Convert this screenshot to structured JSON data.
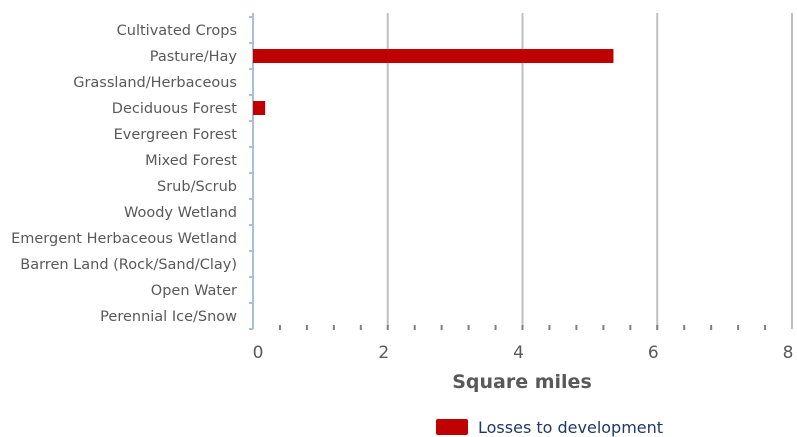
{
  "chart_data": {
    "type": "bar",
    "orientation": "horizontal",
    "categories": [
      "Cultivated Crops",
      "Pasture/Hay",
      "Grassland/Herbaceous",
      "Deciduous Forest",
      "Evergreen Forest",
      "Mixed Forest",
      "Srub/Scrub",
      "Woody Wetland",
      "Emergent Herbaceous Wetland",
      "Barren Land (Rock/Sand/Clay)",
      "Open Water",
      "Perennial Ice/Snow"
    ],
    "series": [
      {
        "name": "Losses to development",
        "color": "#c00000",
        "values": [
          0,
          5.35,
          0,
          0.18,
          0,
          0,
          0,
          0,
          0,
          0,
          0,
          0
        ]
      }
    ],
    "xlabel": "Square miles",
    "ylabel": "",
    "xlim": [
      0,
      8
    ],
    "xticks": [
      "0",
      "2",
      "4",
      "6",
      "8"
    ],
    "grid": "vertical major gridlines",
    "legend_position": "bottom"
  }
}
